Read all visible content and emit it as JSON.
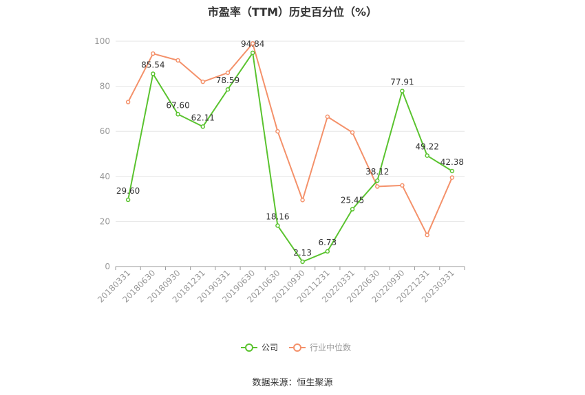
{
  "chart_data": {
    "type": "line",
    "title": "市盈率（TTM）历史百分位（%）",
    "source": "数据来源：恒生聚源",
    "categories": [
      "20180331",
      "20180630",
      "20180930",
      "20181231",
      "20190331",
      "20190630",
      "20210630",
      "20210930",
      "20211231",
      "20220331",
      "20220630",
      "20220930",
      "20221231",
      "20230331"
    ],
    "ylim": [
      0,
      100
    ],
    "yticks": [
      0,
      20,
      40,
      60,
      80,
      100
    ],
    "grid": true,
    "legend": "bottom-center",
    "series": [
      {
        "name": "公司",
        "color": "#5ac32f",
        "values": [
          29.6,
          85.54,
          67.6,
          62.11,
          78.59,
          94.84,
          18.16,
          2.13,
          6.73,
          25.45,
          38.12,
          77.91,
          49.22,
          42.38
        ],
        "labels": [
          "29.60",
          "85.54",
          "67.60",
          "62.11",
          "78.59",
          "94.84",
          "18.16",
          "2.13",
          "6.73",
          "25.45",
          "38.12",
          "77.91",
          "49.22",
          "42.38"
        ]
      },
      {
        "name": "行业中位数",
        "color": "#f4916a",
        "values": [
          73,
          94.5,
          91.5,
          82,
          86,
          99,
          60,
          29.5,
          66.5,
          59.5,
          35.5,
          36,
          14,
          39.5
        ]
      }
    ]
  }
}
